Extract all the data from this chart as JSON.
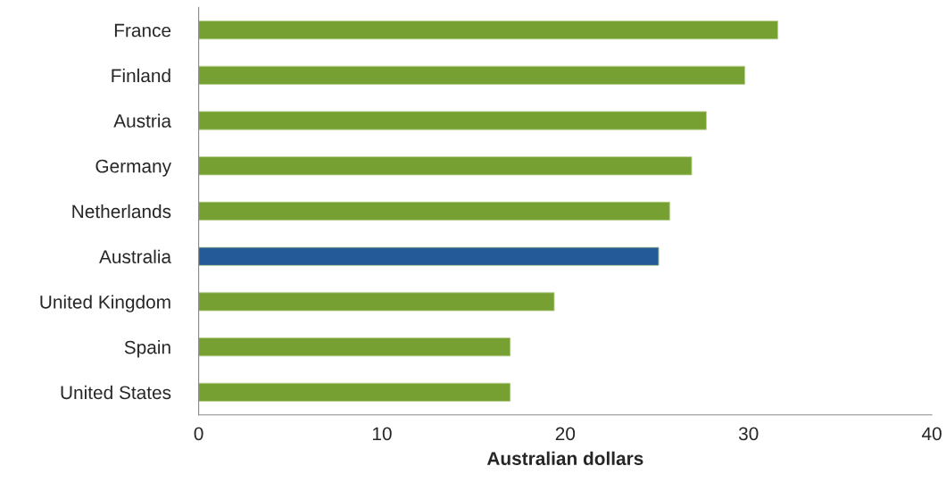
{
  "chart_data": {
    "type": "bar",
    "orientation": "horizontal",
    "xlabel": "Australian dollars",
    "categories": [
      "France",
      "Finland",
      "Austria",
      "Germany",
      "Netherlands",
      "Australia",
      "United Kingdom",
      "Spain",
      "United States"
    ],
    "values": [
      31.6,
      29.8,
      27.7,
      26.9,
      25.7,
      25.1,
      19.4,
      17.0,
      17.0
    ],
    "colors": [
      "#77a032",
      "#77a032",
      "#77a032",
      "#77a032",
      "#77a032",
      "#255a99",
      "#77a032",
      "#77a032",
      "#77a032"
    ],
    "xlim": [
      0,
      40
    ],
    "xticks": [
      0,
      10,
      20,
      30,
      40
    ],
    "grid": false,
    "legend": false
  }
}
